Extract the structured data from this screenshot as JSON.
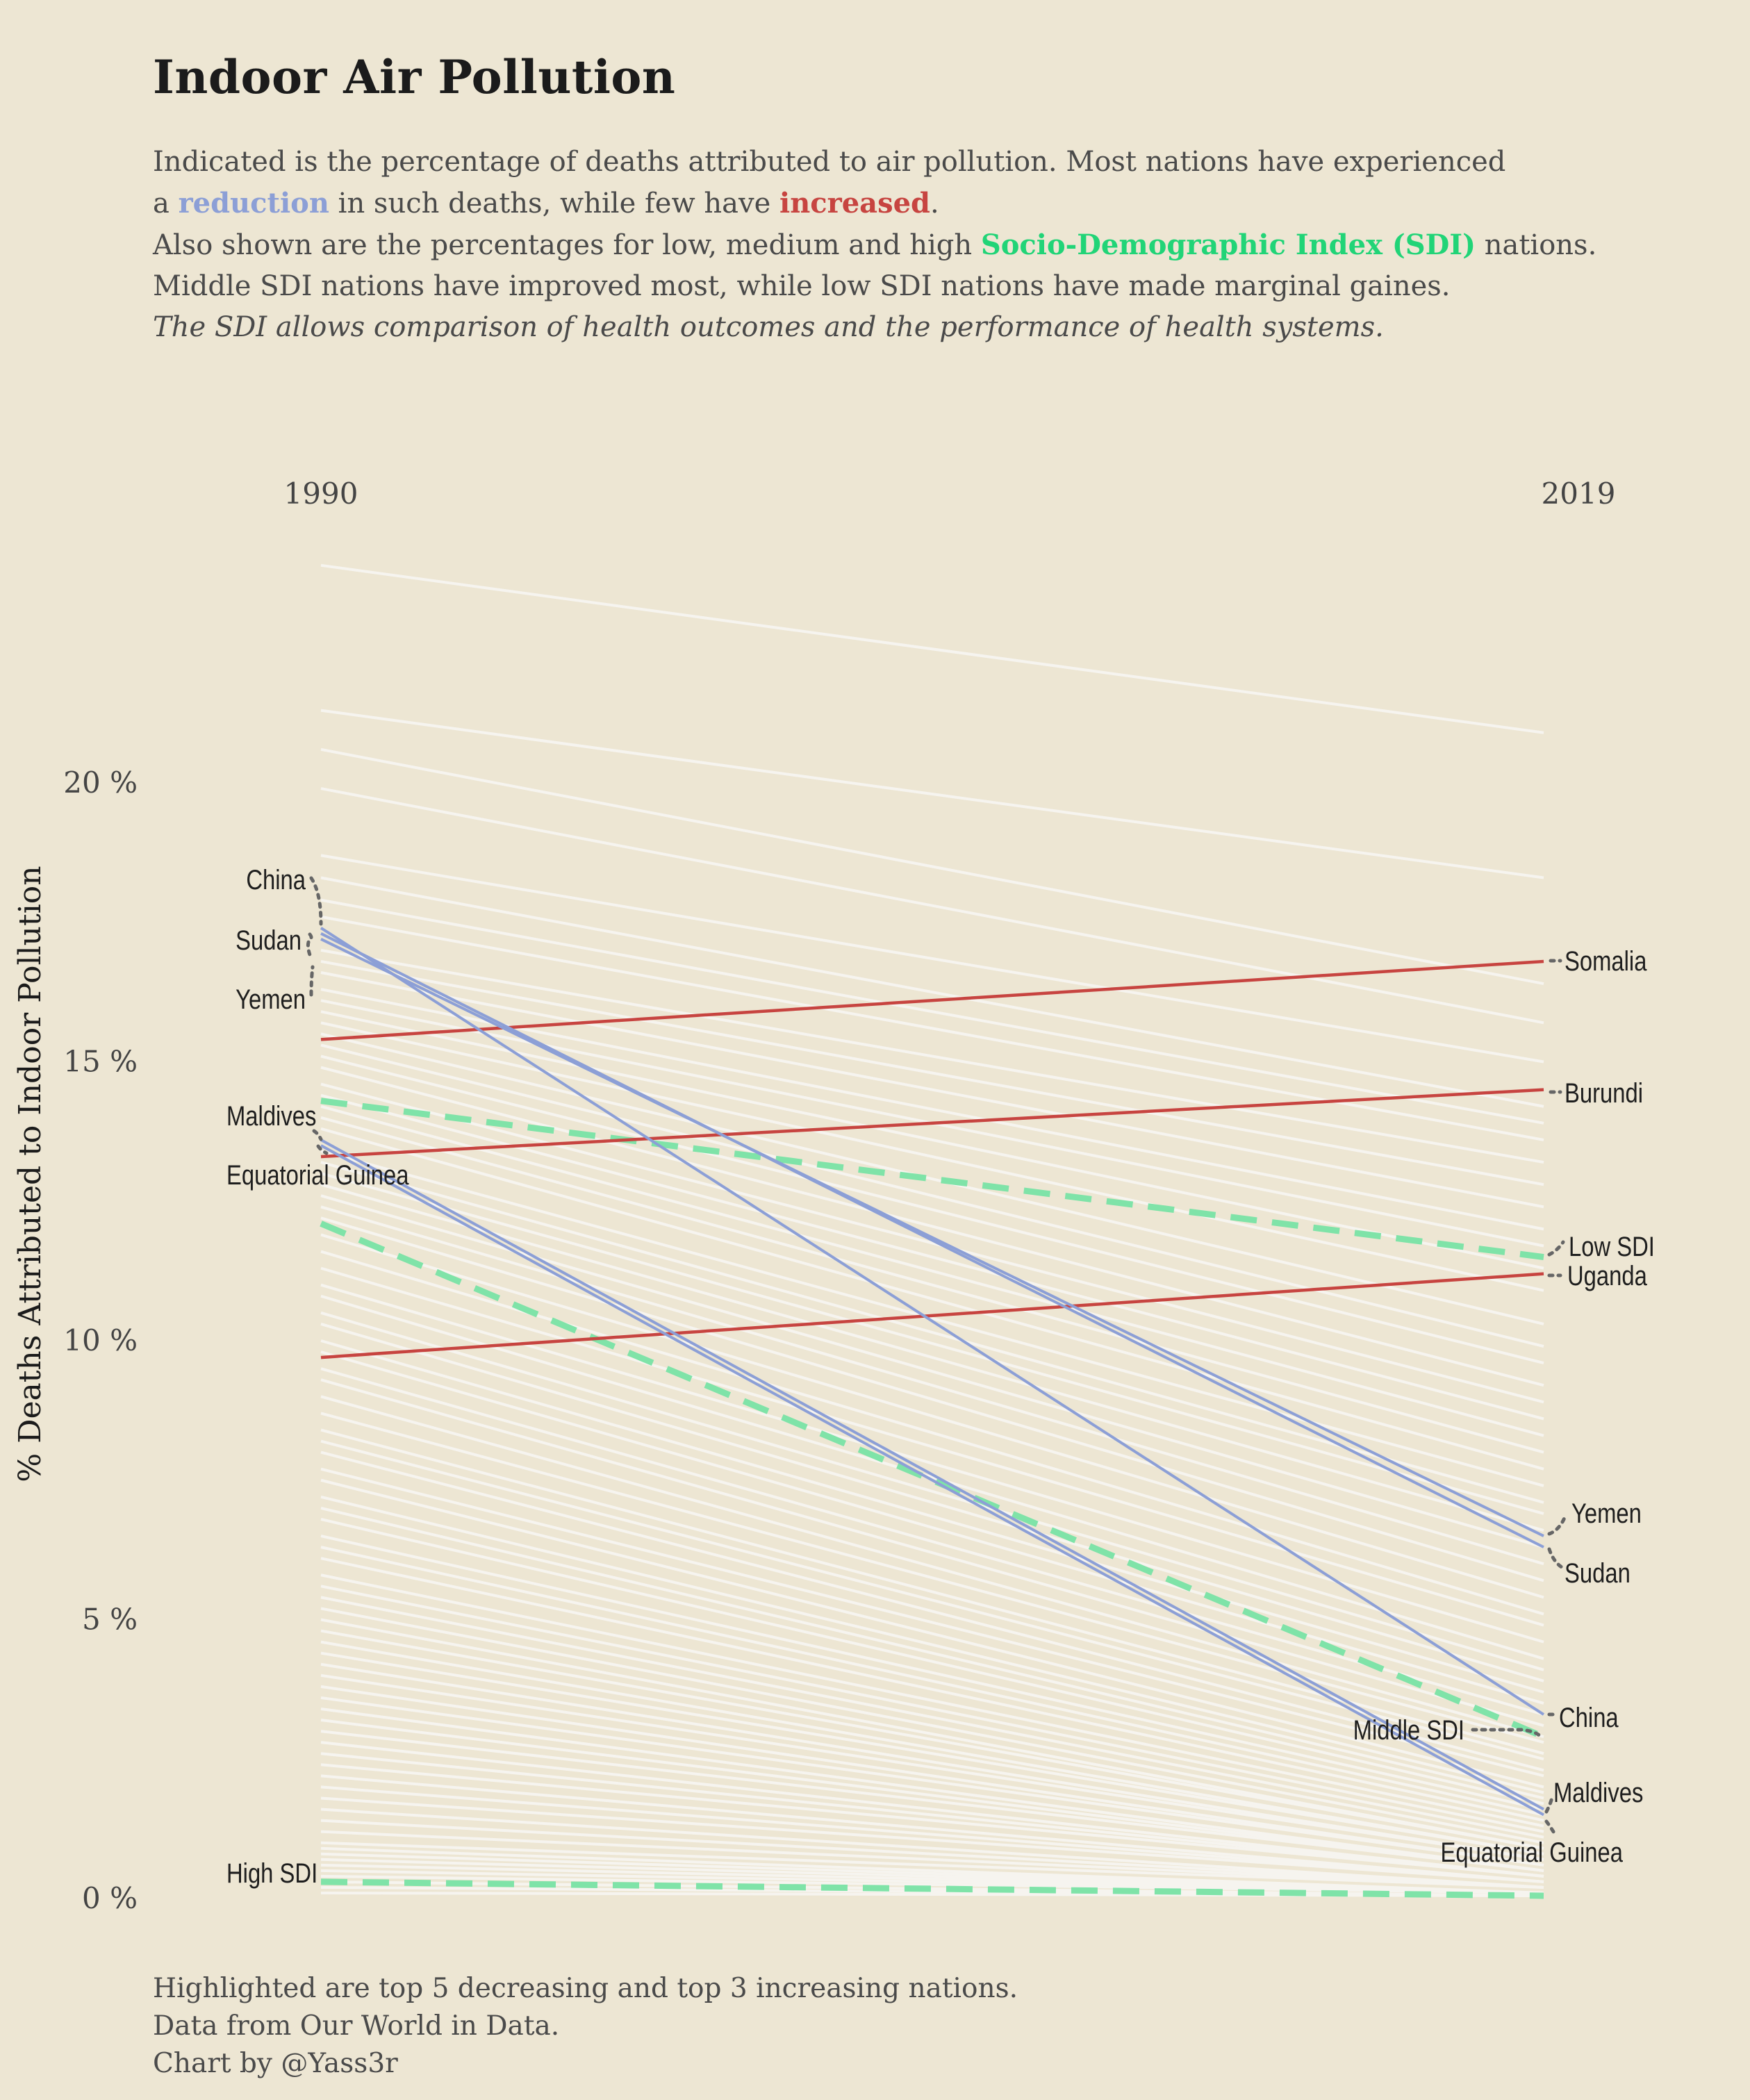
{
  "title": "Indoor Air Pollution",
  "subtitle": {
    "line1": "Indicated is the percentage of deaths attributed to air pollution. Most nations have experienced",
    "line2_pre": "a ",
    "line2_reduction": "reduction",
    "line2_mid": " in such deaths, while few have ",
    "line2_increased": "increased",
    "line2_post": ".",
    "line3_pre": "Also shown are the percentages for low, medium and high ",
    "line3_sdi": "Socio-Demographic Index (SDI)",
    "line3_post": " nations.",
    "line4": "Middle SDI nations have improved most, while low SDI nations have made marginal gaines.",
    "line5": "The SDI allows comparison of health outcomes and the performance of health systems."
  },
  "footer": {
    "line1": "Highlighted are top 5 decreasing and top 3 increasing nations.",
    "line2": "Data from Our World in Data.",
    "line3": "Chart by @Yass3r"
  },
  "colors": {
    "background": "#ede6d3",
    "background_lines": "#f6f4ef",
    "decrease": "#8c9fd6",
    "increase": "#c74440",
    "sdi": "#7fe3a8",
    "sdi_text": "#21d477",
    "label": "#1e1e1e",
    "connector": "#666666"
  },
  "chart_data": {
    "type": "line",
    "chart_style": "slope",
    "x": [
      1990,
      2019
    ],
    "xlabels": [
      "1990",
      "2019"
    ],
    "ylabel": "% Deaths Attributed to Indoor Pollution",
    "yticks": [
      {
        "value": 0,
        "label": "0 %"
      },
      {
        "value": 5,
        "label": "5 %"
      },
      {
        "value": 10,
        "label": "10 %"
      },
      {
        "value": 15,
        "label": "15 %"
      },
      {
        "value": 20,
        "label": "20 %"
      }
    ],
    "ylim": [
      0,
      24
    ],
    "highlighted": [
      {
        "name": "China",
        "trend": "decrease",
        "values": [
          17.4,
          3.3
        ]
      },
      {
        "name": "Sudan",
        "trend": "decrease",
        "values": [
          17.3,
          6.3
        ]
      },
      {
        "name": "Yemen",
        "trend": "decrease",
        "values": [
          17.2,
          6.5
        ]
      },
      {
        "name": "Maldives",
        "trend": "decrease",
        "values": [
          13.6,
          1.6
        ]
      },
      {
        "name": "Equatorial Guinea",
        "trend": "decrease",
        "values": [
          13.5,
          1.5
        ]
      },
      {
        "name": "Somalia",
        "trend": "increase",
        "values": [
          15.4,
          16.8
        ]
      },
      {
        "name": "Burundi",
        "trend": "increase",
        "values": [
          13.3,
          14.5
        ]
      },
      {
        "name": "Uganda",
        "trend": "increase",
        "values": [
          9.7,
          11.2
        ]
      }
    ],
    "sdi": [
      {
        "name": "Low SDI",
        "values": [
          14.3,
          11.5
        ]
      },
      {
        "name": "Middle SDI",
        "values": [
          12.1,
          2.9
        ]
      },
      {
        "name": "High SDI",
        "values": [
          0.3,
          0.05
        ]
      }
    ],
    "background_countries": [
      [
        23.9,
        20.9
      ],
      [
        21.3,
        18.3
      ],
      [
        20.6,
        16.4
      ],
      [
        19.9,
        15.7
      ],
      [
        18.7,
        15.0
      ],
      [
        18.3,
        14.2
      ],
      [
        17.9,
        13.9
      ],
      [
        17.6,
        13.6
      ],
      [
        17.0,
        13.2
      ],
      [
        16.8,
        12.8
      ],
      [
        16.6,
        12.4
      ],
      [
        16.3,
        12.0
      ],
      [
        16.1,
        11.7
      ],
      [
        15.9,
        11.3
      ],
      [
        15.7,
        10.9
      ],
      [
        15.5,
        10.3
      ],
      [
        15.3,
        9.9
      ],
      [
        15.1,
        9.6
      ],
      [
        14.9,
        9.2
      ],
      [
        14.6,
        8.9
      ],
      [
        14.4,
        8.6
      ],
      [
        14.2,
        8.3
      ],
      [
        14.0,
        8.0
      ],
      [
        13.8,
        7.7
      ],
      [
        13.4,
        7.4
      ],
      [
        13.2,
        7.1
      ],
      [
        13.0,
        6.9
      ],
      [
        12.8,
        6.6
      ],
      [
        12.6,
        6.3
      ],
      [
        12.4,
        6.0
      ],
      [
        12.2,
        5.7
      ],
      [
        11.9,
        5.4
      ],
      [
        11.6,
        5.1
      ],
      [
        11.3,
        4.9
      ],
      [
        11.0,
        4.6
      ],
      [
        10.8,
        4.3
      ],
      [
        10.5,
        4.1
      ],
      [
        10.3,
        3.9
      ],
      [
        10.0,
        3.7
      ],
      [
        9.8,
        3.5
      ],
      [
        9.5,
        3.3
      ],
      [
        9.3,
        3.1
      ],
      [
        9.0,
        2.9
      ],
      [
        8.7,
        2.8
      ],
      [
        8.4,
        2.6
      ],
      [
        8.2,
        2.5
      ],
      [
        8.0,
        2.3
      ],
      [
        7.7,
        2.2
      ],
      [
        7.5,
        2.0
      ],
      [
        7.2,
        1.9
      ],
      [
        7.0,
        1.8
      ],
      [
        6.8,
        1.7
      ],
      [
        6.5,
        1.6
      ],
      [
        6.3,
        1.5
      ],
      [
        6.1,
        1.4
      ],
      [
        5.8,
        1.3
      ],
      [
        5.6,
        1.2
      ],
      [
        5.4,
        1.1
      ],
      [
        5.2,
        1.0
      ],
      [
        5.0,
        0.9
      ],
      [
        4.8,
        0.9
      ],
      [
        4.6,
        0.8
      ],
      [
        4.4,
        0.8
      ],
      [
        4.2,
        0.7
      ],
      [
        4.0,
        0.7
      ],
      [
        3.8,
        0.6
      ],
      [
        3.6,
        0.6
      ],
      [
        3.4,
        0.5
      ],
      [
        3.2,
        0.5
      ],
      [
        3.0,
        0.5
      ],
      [
        2.8,
        0.4
      ],
      [
        2.6,
        0.4
      ],
      [
        2.4,
        0.4
      ],
      [
        2.2,
        0.3
      ],
      [
        2.0,
        0.3
      ],
      [
        1.8,
        0.3
      ],
      [
        1.6,
        0.2
      ],
      [
        1.4,
        0.2
      ],
      [
        1.2,
        0.2
      ],
      [
        1.0,
        0.2
      ],
      [
        0.9,
        0.1
      ],
      [
        0.8,
        0.1
      ],
      [
        0.7,
        0.1
      ],
      [
        0.6,
        0.1
      ],
      [
        0.5,
        0.1
      ],
      [
        0.4,
        0.1
      ],
      [
        0.3,
        0.05
      ],
      [
        0.2,
        0.05
      ],
      [
        0.1,
        0.05
      ]
    ]
  }
}
